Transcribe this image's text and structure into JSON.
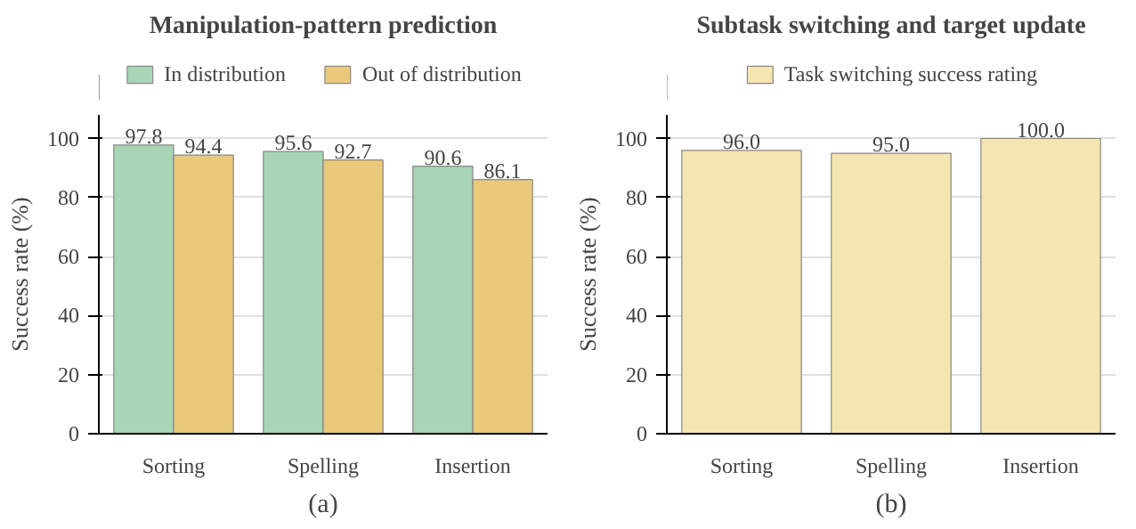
{
  "chart_data": [
    {
      "type": "bar",
      "title": "Manipulation-pattern prediction",
      "xlabel": "(a)",
      "ylabel": "Success rate (%)",
      "categories": [
        "Sorting",
        "Spelling",
        "Insertion"
      ],
      "series": [
        {
          "name": "In distribution",
          "color": "#a8d5b5",
          "values": [
            97.8,
            95.6,
            90.6
          ]
        },
        {
          "name": "Out of distribution",
          "color": "#e9c97a",
          "values": [
            94.4,
            92.7,
            86.1
          ]
        }
      ],
      "ylim": [
        0,
        108
      ],
      "yticks": [
        0,
        20,
        40,
        60,
        80,
        100
      ],
      "grid": "y",
      "legend": "top",
      "data_labels": true
    },
    {
      "type": "bar",
      "title": "Subtask switching and target update",
      "xlabel": "(b)",
      "ylabel": "Success rate (%)",
      "categories": [
        "Sorting",
        "Spelling",
        "Insertion"
      ],
      "series": [
        {
          "name": "Task switching success rating",
          "color": "#f5e5b0",
          "values": [
            96.0,
            95.0,
            100.0
          ],
          "value_labels": [
            "96.0",
            "95.0",
            "100.0"
          ]
        }
      ],
      "ylim": [
        0,
        108
      ],
      "yticks": [
        0,
        20,
        40,
        60,
        80,
        100
      ],
      "grid": "y",
      "legend": "top"
    }
  ]
}
